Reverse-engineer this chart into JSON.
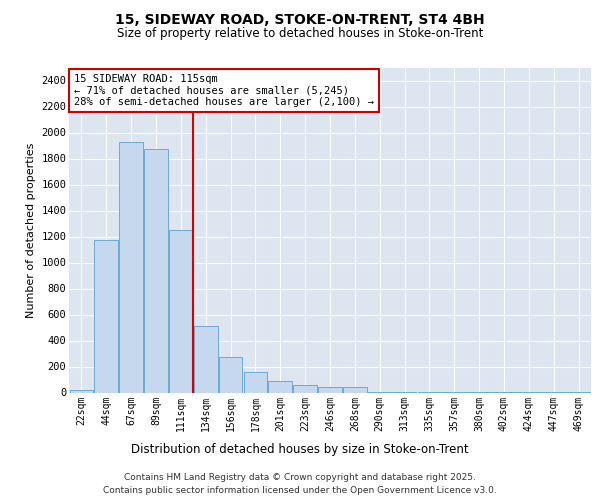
{
  "title": "15, SIDEWAY ROAD, STOKE-ON-TRENT, ST4 4BH",
  "subtitle": "Size of property relative to detached houses in Stoke-on-Trent",
  "xlabel": "Distribution of detached houses by size in Stoke-on-Trent",
  "ylabel": "Number of detached properties",
  "bar_labels": [
    "22sqm",
    "44sqm",
    "67sqm",
    "89sqm",
    "111sqm",
    "134sqm",
    "156sqm",
    "178sqm",
    "201sqm",
    "223sqm",
    "246sqm",
    "268sqm",
    "290sqm",
    "313sqm",
    "335sqm",
    "357sqm",
    "380sqm",
    "402sqm",
    "424sqm",
    "447sqm",
    "469sqm"
  ],
  "bar_values": [
    20,
    1175,
    1925,
    1875,
    1250,
    510,
    270,
    155,
    90,
    55,
    45,
    45,
    5,
    5,
    5,
    5,
    5,
    5,
    5,
    5,
    5
  ],
  "bar_color": "#c5d8ee",
  "bar_edge_color": "#6aaad4",
  "red_line_index": 4,
  "annotation_text": "15 SIDEWAY ROAD: 115sqm\n← 71% of detached houses are smaller (5,245)\n28% of semi-detached houses are larger (2,100) →",
  "annotation_box_color": "#ffffff",
  "annotation_box_edge_color": "#cc0000",
  "ylim": [
    0,
    2500
  ],
  "yticks": [
    0,
    200,
    400,
    600,
    800,
    1000,
    1200,
    1400,
    1600,
    1800,
    2000,
    2200,
    2400
  ],
  "grid_color": "#d0d8e8",
  "background_color": "#dde6f0",
  "footer_line1": "Contains HM Land Registry data © Crown copyright and database right 2025.",
  "footer_line2": "Contains public sector information licensed under the Open Government Licence v3.0."
}
